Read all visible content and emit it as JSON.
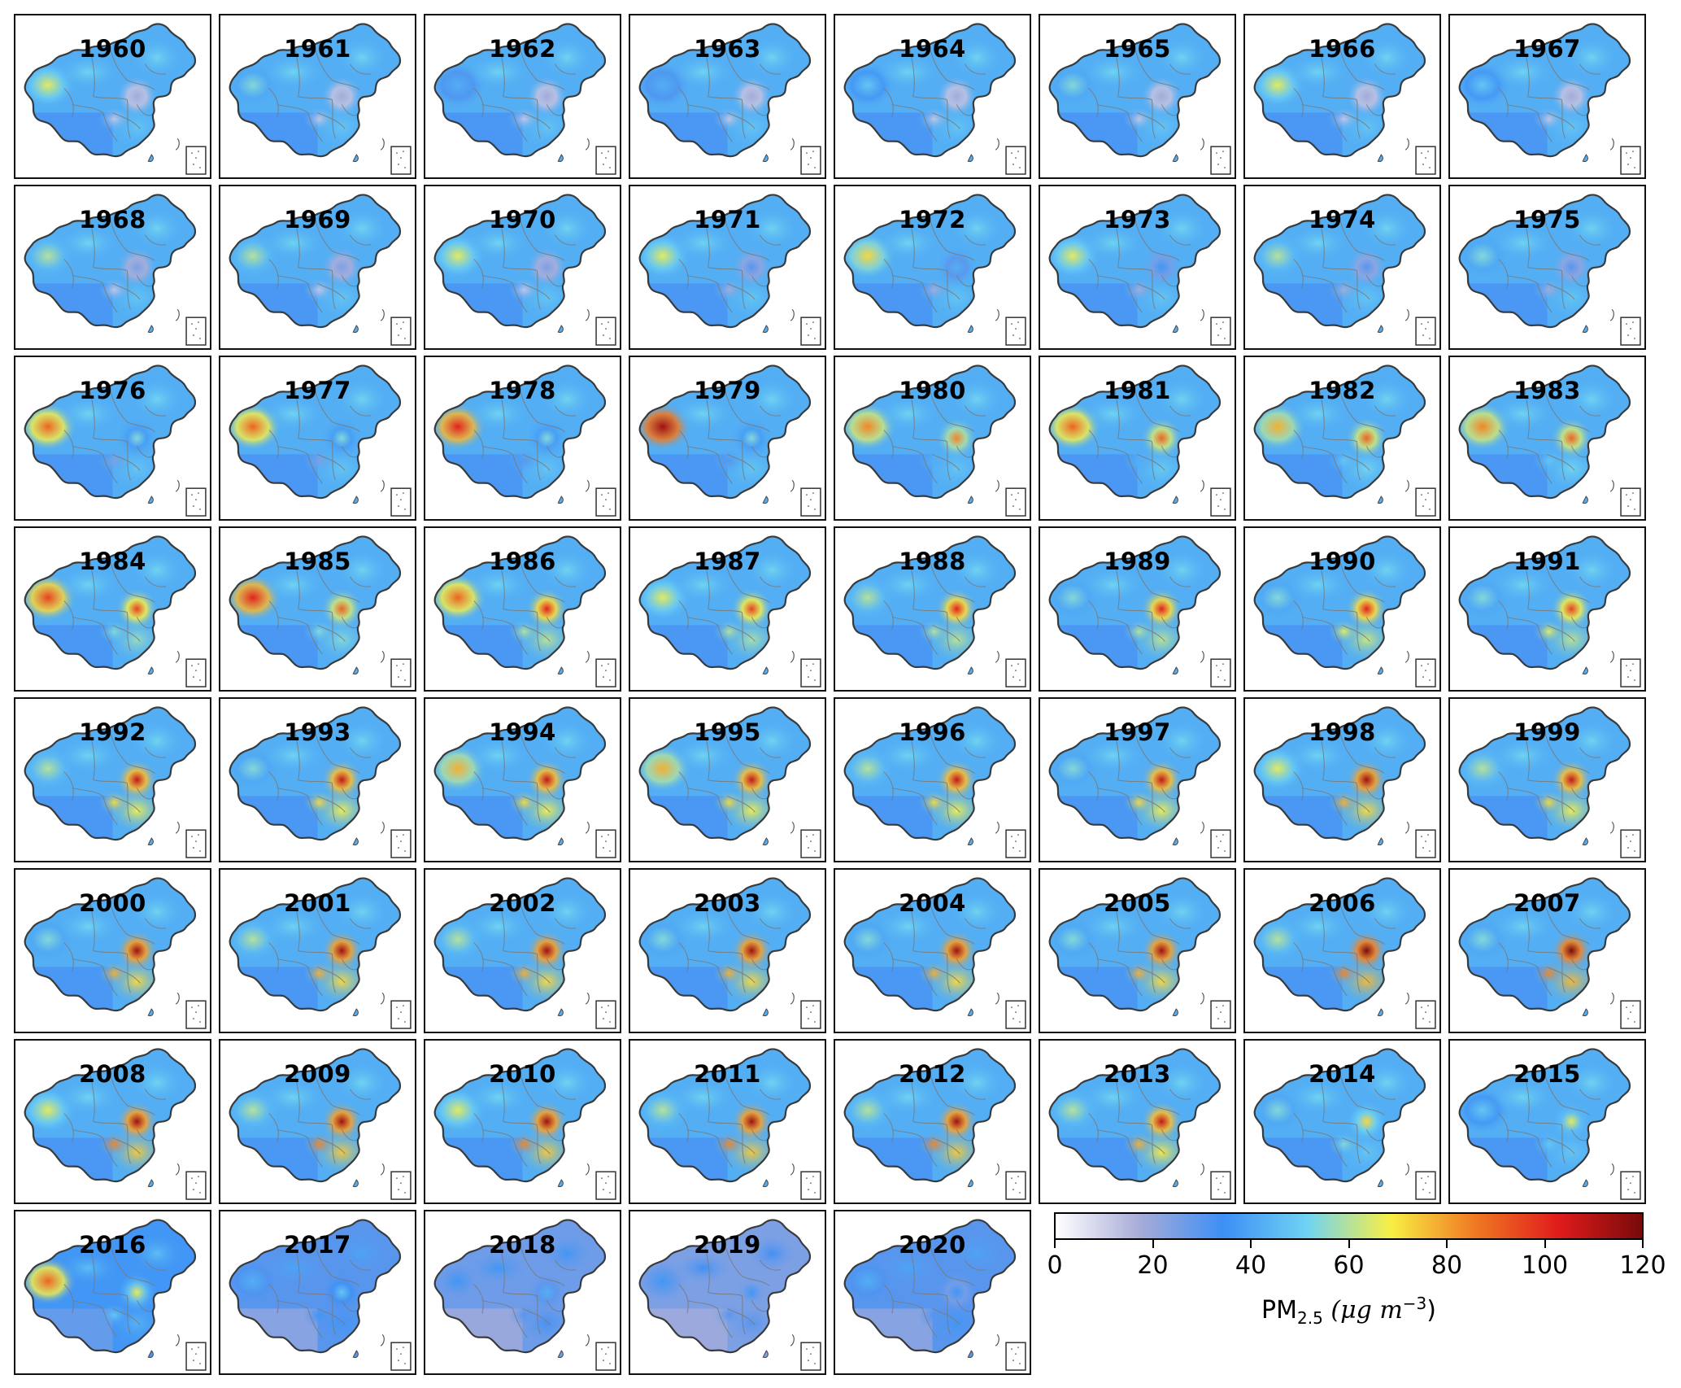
{
  "figure": {
    "years": [
      "1960",
      "1961",
      "1962",
      "1963",
      "1964",
      "1965",
      "1966",
      "1967",
      "1968",
      "1969",
      "1970",
      "1971",
      "1972",
      "1973",
      "1974",
      "1975",
      "1976",
      "1977",
      "1978",
      "1979",
      "1980",
      "1981",
      "1982",
      "1983",
      "1984",
      "1985",
      "1986",
      "1987",
      "1988",
      "1989",
      "1990",
      "1991",
      "1992",
      "1993",
      "1994",
      "1995",
      "1996",
      "1997",
      "1998",
      "1999",
      "2000",
      "2001",
      "2002",
      "2003",
      "2004",
      "2005",
      "2006",
      "2007",
      "2008",
      "2009",
      "2010",
      "2011",
      "2012",
      "2013",
      "2014",
      "2015",
      "2016",
      "2017",
      "2018",
      "2019",
      "2020"
    ],
    "hotspot_levels": {
      "xinjiang": [
        0.55,
        0.45,
        0.35,
        0.35,
        0.4,
        0.45,
        0.55,
        0.4,
        0.5,
        0.5,
        0.55,
        0.55,
        0.6,
        0.55,
        0.5,
        0.45,
        0.75,
        0.75,
        0.85,
        0.95,
        0.7,
        0.75,
        0.65,
        0.7,
        0.8,
        0.85,
        0.75,
        0.55,
        0.5,
        0.45,
        0.45,
        0.45,
        0.5,
        0.45,
        0.65,
        0.65,
        0.5,
        0.45,
        0.55,
        0.5,
        0.45,
        0.5,
        0.5,
        0.45,
        0.45,
        0.45,
        0.5,
        0.45,
        0.55,
        0.5,
        0.55,
        0.5,
        0.5,
        0.5,
        0.45,
        0.4,
        0.75,
        0.35,
        0.3,
        0.3,
        0.35
      ],
      "north_china": [
        0.15,
        0.15,
        0.15,
        0.15,
        0.15,
        0.15,
        0.15,
        0.15,
        0.2,
        0.2,
        0.2,
        0.25,
        0.35,
        0.3,
        0.25,
        0.25,
        0.45,
        0.45,
        0.45,
        0.45,
        0.7,
        0.75,
        0.75,
        0.75,
        0.8,
        0.75,
        0.85,
        0.8,
        0.85,
        0.85,
        0.85,
        0.8,
        0.9,
        0.9,
        0.9,
        0.9,
        0.9,
        0.9,
        0.95,
        0.9,
        0.95,
        0.95,
        0.95,
        0.95,
        0.95,
        0.95,
        1.0,
        1.0,
        0.95,
        0.95,
        0.95,
        0.95,
        0.95,
        0.9,
        0.6,
        0.55,
        0.55,
        0.4,
        0.35,
        0.3,
        0.3
      ],
      "sichuan": [
        0.1,
        0.1,
        0.1,
        0.1,
        0.1,
        0.1,
        0.1,
        0.1,
        0.1,
        0.1,
        0.1,
        0.15,
        0.15,
        0.15,
        0.15,
        0.15,
        0.2,
        0.2,
        0.25,
        0.25,
        0.35,
        0.35,
        0.4,
        0.4,
        0.45,
        0.45,
        0.5,
        0.5,
        0.5,
        0.5,
        0.55,
        0.55,
        0.6,
        0.6,
        0.6,
        0.6,
        0.6,
        0.6,
        0.65,
        0.6,
        0.65,
        0.65,
        0.65,
        0.65,
        0.65,
        0.65,
        0.7,
        0.7,
        0.7,
        0.7,
        0.7,
        0.7,
        0.7,
        0.65,
        0.45,
        0.4,
        0.4,
        0.3,
        0.25,
        0.25,
        0.25
      ],
      "background": [
        0.35,
        0.35,
        0.35,
        0.35,
        0.35,
        0.35,
        0.35,
        0.35,
        0.35,
        0.35,
        0.35,
        0.35,
        0.35,
        0.35,
        0.35,
        0.35,
        0.35,
        0.35,
        0.35,
        0.35,
        0.35,
        0.35,
        0.35,
        0.35,
        0.35,
        0.35,
        0.35,
        0.35,
        0.35,
        0.35,
        0.35,
        0.35,
        0.35,
        0.35,
        0.35,
        0.35,
        0.35,
        0.35,
        0.35,
        0.35,
        0.35,
        0.35,
        0.35,
        0.35,
        0.35,
        0.35,
        0.35,
        0.35,
        0.35,
        0.35,
        0.35,
        0.35,
        0.35,
        0.35,
        0.35,
        0.35,
        0.3,
        0.25,
        0.22,
        0.2,
        0.25
      ]
    }
  },
  "colorbar": {
    "min": 0,
    "max": 120,
    "ticks": [
      "0",
      "20",
      "40",
      "60",
      "80",
      "100",
      "120"
    ],
    "label_prefix": "PM",
    "label_subscript": "2.5",
    "label_unit": "(μg m",
    "label_exponent": "−3",
    "label_close": ")",
    "colors": [
      "#ffffff",
      "#a8acd8",
      "#3d8ff5",
      "#6fd3f3",
      "#f8ef45",
      "#f07a22",
      "#e01c1c",
      "#7a0a0a"
    ]
  }
}
